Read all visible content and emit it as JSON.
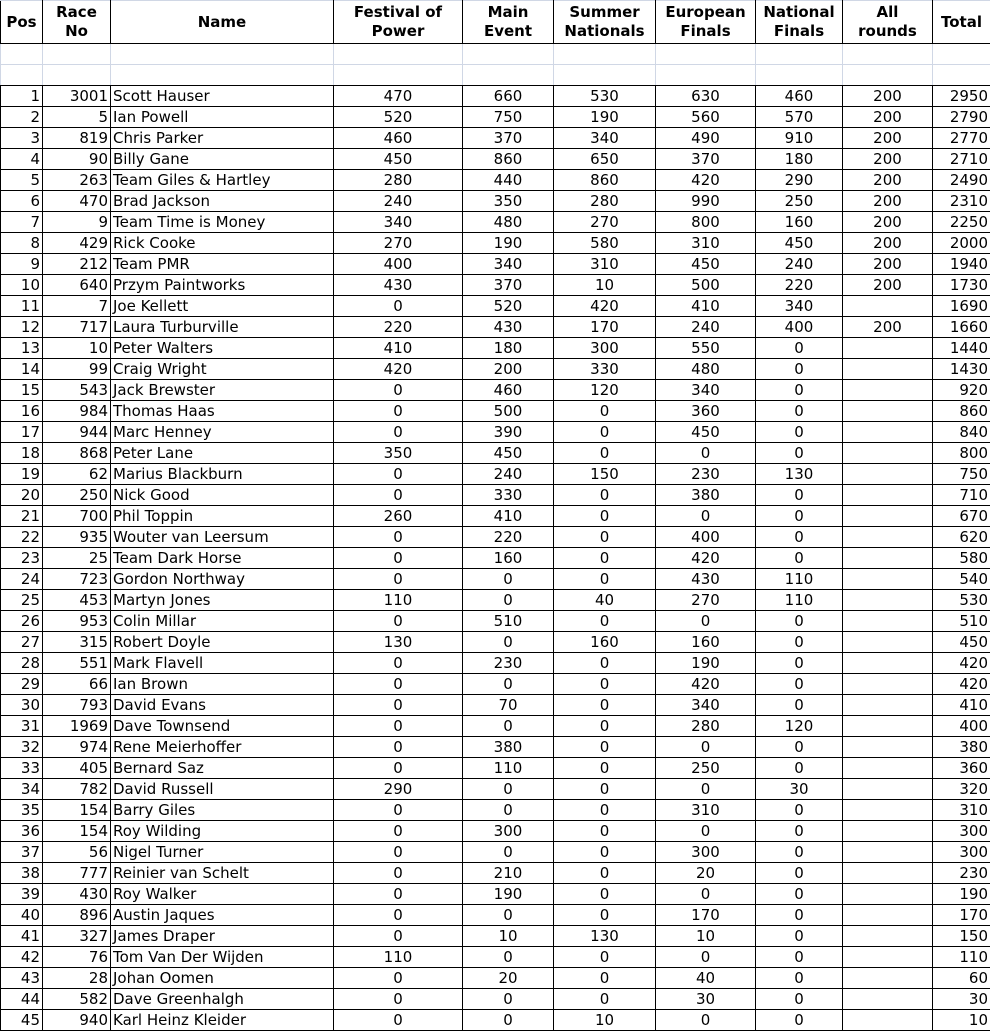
{
  "headers": [
    "Pos",
    "Race No",
    "Name",
    "Festival of Power",
    "Main Event",
    "Summer Nationals",
    "European Finals",
    "National Finals",
    "All rounds",
    "Total"
  ],
  "header_lines": [
    [
      "Pos"
    ],
    [
      "Race",
      "No"
    ],
    [
      "Name"
    ],
    [
      "Festival of",
      "Power"
    ],
    [
      "Main",
      "Event"
    ],
    [
      "Summer",
      "Nationals"
    ],
    [
      "European",
      "Finals"
    ],
    [
      "National",
      "Finals"
    ],
    [
      "All",
      "rounds"
    ],
    [
      "Total"
    ]
  ],
  "rows": [
    [
      "1",
      "3001",
      "Scott Hauser",
      "470",
      "660",
      "530",
      "630",
      "460",
      "200",
      "2950"
    ],
    [
      "2",
      "5",
      "Ian Powell",
      "520",
      "750",
      "190",
      "560",
      "570",
      "200",
      "2790"
    ],
    [
      "3",
      "819",
      "Chris Parker",
      "460",
      "370",
      "340",
      "490",
      "910",
      "200",
      "2770"
    ],
    [
      "4",
      "90",
      "Billy Gane",
      "450",
      "860",
      "650",
      "370",
      "180",
      "200",
      "2710"
    ],
    [
      "5",
      "263",
      "Team Giles & Hartley",
      "280",
      "440",
      "860",
      "420",
      "290",
      "200",
      "2490"
    ],
    [
      "6",
      "470",
      "Brad Jackson",
      "240",
      "350",
      "280",
      "990",
      "250",
      "200",
      "2310"
    ],
    [
      "7",
      "9",
      "Team Time is Money",
      "340",
      "480",
      "270",
      "800",
      "160",
      "200",
      "2250"
    ],
    [
      "8",
      "429",
      "Rick Cooke",
      "270",
      "190",
      "580",
      "310",
      "450",
      "200",
      "2000"
    ],
    [
      "9",
      "212",
      "Team PMR",
      "400",
      "340",
      "310",
      "450",
      "240",
      "200",
      "1940"
    ],
    [
      "10",
      "640",
      "Przym Paintworks",
      "430",
      "370",
      "10",
      "500",
      "220",
      "200",
      "1730"
    ],
    [
      "11",
      "7",
      "Joe Kellett",
      "0",
      "520",
      "420",
      "410",
      "340",
      "",
      "1690"
    ],
    [
      "12",
      "717",
      "Laura Turburville",
      "220",
      "430",
      "170",
      "240",
      "400",
      "200",
      "1660"
    ],
    [
      "13",
      "10",
      "Peter Walters",
      "410",
      "180",
      "300",
      "550",
      "0",
      "",
      "1440"
    ],
    [
      "14",
      "99",
      "Craig Wright",
      "420",
      "200",
      "330",
      "480",
      "0",
      "",
      "1430"
    ],
    [
      "15",
      "543",
      "Jack Brewster",
      "0",
      "460",
      "120",
      "340",
      "0",
      "",
      "920"
    ],
    [
      "16",
      "984",
      "Thomas Haas",
      "0",
      "500",
      "0",
      "360",
      "0",
      "",
      "860"
    ],
    [
      "17",
      "944",
      "Marc Henney",
      "0",
      "390",
      "0",
      "450",
      "0",
      "",
      "840"
    ],
    [
      "18",
      "868",
      "Peter Lane",
      "350",
      "450",
      "0",
      "0",
      "0",
      "",
      "800"
    ],
    [
      "19",
      "62",
      "Marius Blackburn",
      "0",
      "240",
      "150",
      "230",
      "130",
      "",
      "750"
    ],
    [
      "20",
      "250",
      "Nick Good",
      "0",
      "330",
      "0",
      "380",
      "0",
      "",
      "710"
    ],
    [
      "21",
      "700",
      "Phil Toppin",
      "260",
      "410",
      "0",
      "0",
      "0",
      "",
      "670"
    ],
    [
      "22",
      "935",
      "Wouter van Leersum",
      "0",
      "220",
      "0",
      "400",
      "0",
      "",
      "620"
    ],
    [
      "23",
      "25",
      "Team Dark Horse",
      "0",
      "160",
      "0",
      "420",
      "0",
      "",
      "580"
    ],
    [
      "24",
      "723",
      "Gordon Northway",
      "0",
      "0",
      "0",
      "430",
      "110",
      "",
      "540"
    ],
    [
      "25",
      "453",
      "Martyn Jones",
      "110",
      "0",
      "40",
      "270",
      "110",
      "",
      "530"
    ],
    [
      "26",
      "953",
      "Colin Millar",
      "0",
      "510",
      "0",
      "0",
      "0",
      "",
      "510"
    ],
    [
      "27",
      "315",
      "Robert Doyle",
      "130",
      "0",
      "160",
      "160",
      "0",
      "",
      "450"
    ],
    [
      "28",
      "551",
      "Mark Flavell",
      "0",
      "230",
      "0",
      "190",
      "0",
      "",
      "420"
    ],
    [
      "29",
      "66",
      "Ian Brown",
      "0",
      "0",
      "0",
      "420",
      "0",
      "",
      "420"
    ],
    [
      "30",
      "793",
      "David Evans",
      "0",
      "70",
      "0",
      "340",
      "0",
      "",
      "410"
    ],
    [
      "31",
      "1969",
      "Dave Townsend",
      "0",
      "0",
      "0",
      "280",
      "120",
      "",
      "400"
    ],
    [
      "32",
      "974",
      "Rene Meierhoffer",
      "0",
      "380",
      "0",
      "0",
      "0",
      "",
      "380"
    ],
    [
      "33",
      "405",
      "Bernard Saz",
      "0",
      "110",
      "0",
      "250",
      "0",
      "",
      "360"
    ],
    [
      "34",
      "782",
      "David Russell",
      "290",
      "0",
      "0",
      "0",
      "30",
      "",
      "320"
    ],
    [
      "35",
      "154",
      "Barry Giles",
      "0",
      "0",
      "0",
      "310",
      "0",
      "",
      "310"
    ],
    [
      "36",
      "154",
      "Roy Wilding",
      "0",
      "300",
      "0",
      "0",
      "0",
      "",
      "300"
    ],
    [
      "37",
      "56",
      "Nigel Turner",
      "0",
      "0",
      "0",
      "300",
      "0",
      "",
      "300"
    ],
    [
      "38",
      "777",
      "Reinier van Schelt",
      "0",
      "210",
      "0",
      "20",
      "0",
      "",
      "230"
    ],
    [
      "39",
      "430",
      "Roy Walker",
      "0",
      "190",
      "0",
      "0",
      "0",
      "",
      "190"
    ],
    [
      "40",
      "896",
      "Austin Jaques",
      "0",
      "0",
      "0",
      "170",
      "0",
      "",
      "170"
    ],
    [
      "41",
      "327",
      "James Draper",
      "0",
      "10",
      "130",
      "10",
      "0",
      "",
      "150"
    ],
    [
      "42",
      "76",
      "Tom Van Der Wijden",
      "110",
      "0",
      "0",
      "0",
      "0",
      "",
      "110"
    ],
    [
      "43",
      "28",
      "Johan Oomen",
      "0",
      "20",
      "0",
      "40",
      "0",
      "",
      "60"
    ],
    [
      "44",
      "582",
      "Dave Greenhalgh",
      "0",
      "0",
      "0",
      "30",
      "0",
      "",
      "30"
    ],
    [
      "45",
      "940",
      "Karl Heinz Kleider",
      "0",
      "0",
      "10",
      "0",
      "0",
      "",
      "10"
    ]
  ]
}
